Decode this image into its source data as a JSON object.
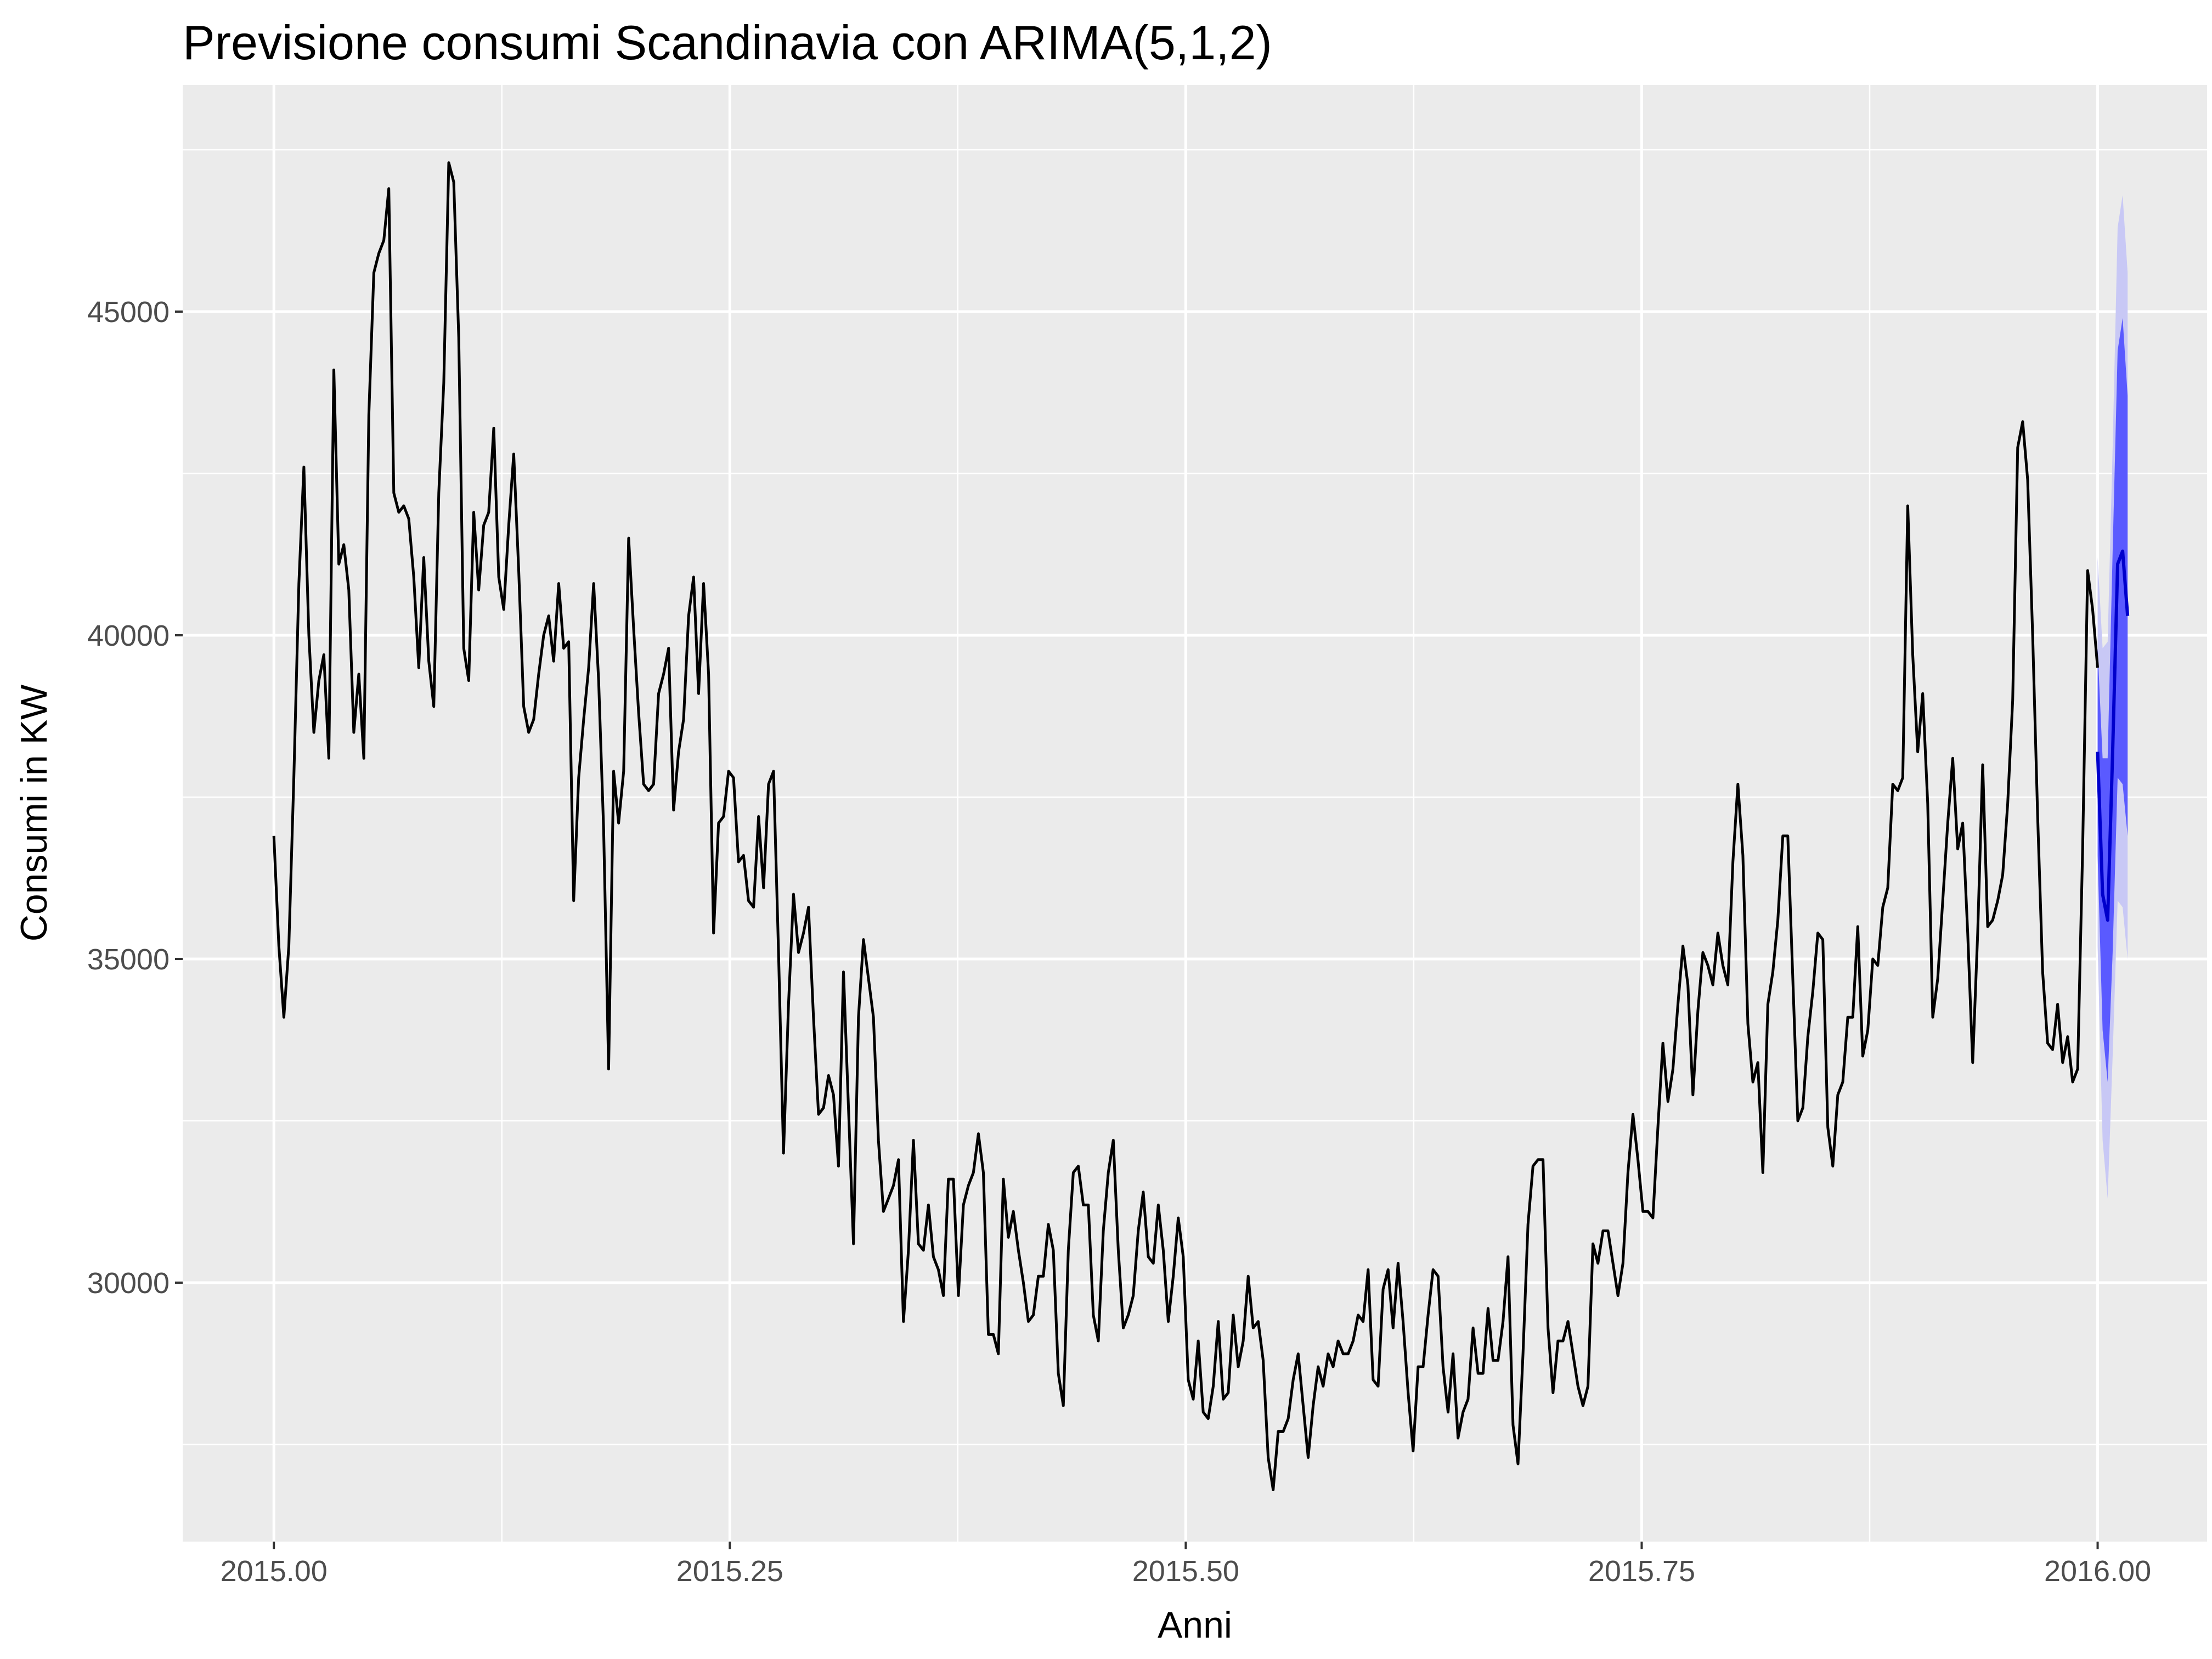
{
  "chart_data": {
    "type": "line",
    "title": "Previsione consumi Scandinavia con ARIMA(5,1,2)",
    "xlabel": "Anni",
    "ylabel": "Consumi in KW",
    "xlim": [
      2014.95,
      2016.06
    ],
    "ylim": [
      26000,
      48500
    ],
    "x_ticks": [
      2015.0,
      2015.25,
      2015.5,
      2015.75,
      2016.0
    ],
    "x_tick_labels": [
      "2015.00",
      "2015.25",
      "2015.50",
      "2015.75",
      "2016.00"
    ],
    "y_ticks": [
      30000,
      35000,
      40000,
      45000
    ],
    "y_tick_labels": [
      "30000",
      "35000",
      "40000",
      "45000"
    ],
    "grid": true,
    "legend": "none",
    "background": "#ebebeb",
    "grid_color": "#ffffff",
    "series": [
      {
        "role": "observed",
        "color": "#000000",
        "x_start": 2015.0,
        "x_step": 0.0027397,
        "values": [
          36900,
          35200,
          34100,
          35200,
          37800,
          40800,
          42600,
          40000,
          38500,
          39300,
          39700,
          38100,
          44100,
          41100,
          41400,
          40700,
          38500,
          39400,
          38100,
          43400,
          45600,
          45900,
          46100,
          46900,
          42200,
          41900,
          42000,
          41800,
          40900,
          39500,
          41200,
          39600,
          38900,
          42200,
          43900,
          47300,
          47000,
          44600,
          39800,
          39300,
          41900,
          40700,
          41700,
          41900,
          43200,
          40900,
          40400,
          41700,
          42800,
          41000,
          38900,
          38500,
          38700,
          39400,
          40000,
          40300,
          39600,
          40800,
          39800,
          39900,
          35900,
          37800,
          38700,
          39500,
          40800,
          39300,
          37000,
          33300,
          37900,
          37100,
          37900,
          41500,
          40100,
          38800,
          37700,
          37600,
          37700,
          39100,
          39400,
          39800,
          37300,
          38200,
          38700,
          40300,
          40900,
          39100,
          40800,
          39400,
          35400,
          37100,
          37200,
          37900,
          37800,
          36500,
          36600,
          35900,
          35800,
          37200,
          36100,
          37700,
          37900,
          35100,
          32000,
          34300,
          36000,
          35100,
          35400,
          35800,
          34100,
          32600,
          32700,
          33200,
          32900,
          31800,
          34800,
          32700,
          30600,
          34100,
          35300,
          34700,
          34100,
          32200,
          31100,
          31300,
          31500,
          31900,
          29400,
          30500,
          32200,
          30600,
          30500,
          31200,
          30400,
          30200,
          29800,
          31600,
          31600,
          29800,
          31200,
          31500,
          31700,
          32300,
          31700,
          29200,
          29200,
          28900,
          31600,
          30700,
          31100,
          30500,
          30000,
          29400,
          29500,
          30100,
          30100,
          30900,
          30500,
          28600,
          28100,
          30500,
          31700,
          31800,
          31200,
          31200,
          29500,
          29100,
          30800,
          31700,
          32200,
          30500,
          29300,
          29500,
          29800,
          30800,
          31400,
          30400,
          30300,
          31200,
          30500,
          29400,
          30100,
          31000,
          30400,
          28500,
          28200,
          29100,
          28000,
          27900,
          28400,
          29400,
          28200,
          28300,
          29500,
          28700,
          29100,
          30100,
          29300,
          29400,
          28800,
          27300,
          26800,
          27700,
          27700,
          27900,
          28500,
          28900,
          28100,
          27300,
          28100,
          28700,
          28400,
          28900,
          28700,
          29100,
          28900,
          28900,
          29100,
          29500,
          29400,
          30200,
          28500,
          28400,
          29900,
          30200,
          29300,
          30300,
          29400,
          28300,
          27400,
          28700,
          28700,
          29500,
          30200,
          30100,
          28700,
          28000,
          28900,
          27600,
          28000,
          28200,
          29300,
          28600,
          28600,
          29600,
          28800,
          28800,
          29400,
          30400,
          27800,
          27200,
          28900,
          30900,
          31800,
          31900,
          31900,
          29300,
          28300,
          29100,
          29100,
          29400,
          28900,
          28400,
          28100,
          28400,
          30600,
          30300,
          30800,
          30800,
          30300,
          29800,
          30300,
          31700,
          32600,
          31900,
          31100,
          31100,
          31000,
          32400,
          33700,
          32800,
          33300,
          34300,
          35200,
          34600,
          32900,
          34200,
          35100,
          34900,
          34600,
          35400,
          34900,
          34600,
          36500,
          37700,
          36600,
          34000,
          33100,
          33400,
          31700,
          34300,
          34800,
          35600,
          36900,
          36900,
          34700,
          32500,
          32700,
          33800,
          34500,
          35400,
          35300,
          32400,
          31800,
          32900,
          33100,
          34100,
          34100,
          35500,
          33500,
          33900,
          35000,
          34900,
          35800,
          36100,
          37700,
          37600,
          37800,
          42000,
          39700,
          38200,
          39100,
          37400,
          34100,
          34700,
          35900,
          37100,
          38100,
          36700,
          37100,
          35400,
          33400,
          35400,
          38000,
          35500,
          35600,
          35900,
          36300,
          37400,
          39000,
          42900,
          43300,
          42400,
          40000,
          37200,
          34800,
          33700,
          33600,
          34300,
          33400,
          33800,
          33100,
          33300,
          36700,
          41000,
          40400,
          39500
        ]
      },
      {
        "role": "forecast",
        "color": "#0000cc",
        "x_start": 2016.0,
        "x_step": 0.0027397,
        "values": [
          38200,
          36000,
          35600,
          38200,
          41100,
          41300,
          40300
        ]
      }
    ],
    "forecast_intervals": {
      "x_start": 2016.0,
      "x_step": 0.0027397,
      "interval_80": {
        "color": "#5a5aff",
        "lower": [
          36600,
          33900,
          33100,
          35100,
          37800,
          37700,
          36900
        ],
        "upper": [
          39800,
          38100,
          38100,
          41300,
          44400,
          44900,
          43700
        ]
      },
      "interval_95": {
        "color": "#c8c8f5",
        "lower": [
          35200,
          32200,
          31300,
          33500,
          35900,
          35800,
          35000
        ],
        "upper": [
          41200,
          39800,
          39900,
          42900,
          46300,
          46800,
          45600
        ]
      }
    }
  }
}
